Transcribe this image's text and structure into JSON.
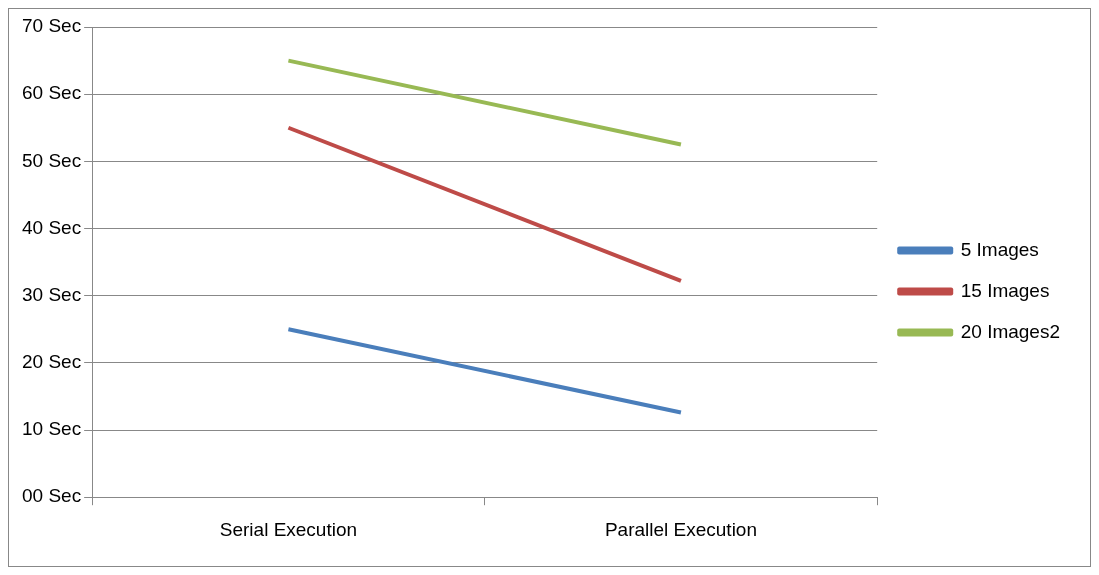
{
  "chart_data": {
    "type": "line",
    "categories": [
      "Serial Execution",
      "Parallel Execution"
    ],
    "series": [
      {
        "name": "5 Images",
        "color": "#4a7ebb",
        "values": [
          25,
          12.6
        ]
      },
      {
        "name": "15 Images",
        "color": "#be4b48",
        "values": [
          55,
          32.2
        ]
      },
      {
        "name": "20 Images2",
        "color": "#98b954",
        "values": [
          65,
          52.5
        ]
      }
    ],
    "ylim": [
      0,
      70
    ],
    "yticks": [
      {
        "value": 0,
        "label": "00 Sec"
      },
      {
        "value": 10,
        "label": "10 Sec"
      },
      {
        "value": 20,
        "label": "20 Sec"
      },
      {
        "value": 30,
        "label": "30 Sec"
      },
      {
        "value": 40,
        "label": "40 Sec"
      },
      {
        "value": 50,
        "label": "50 Sec"
      },
      {
        "value": 60,
        "label": "60 Sec"
      },
      {
        "value": 70,
        "label": "70 Sec"
      }
    ],
    "grid": "y",
    "legend": "right",
    "marker": "none",
    "line_style": "solid"
  }
}
